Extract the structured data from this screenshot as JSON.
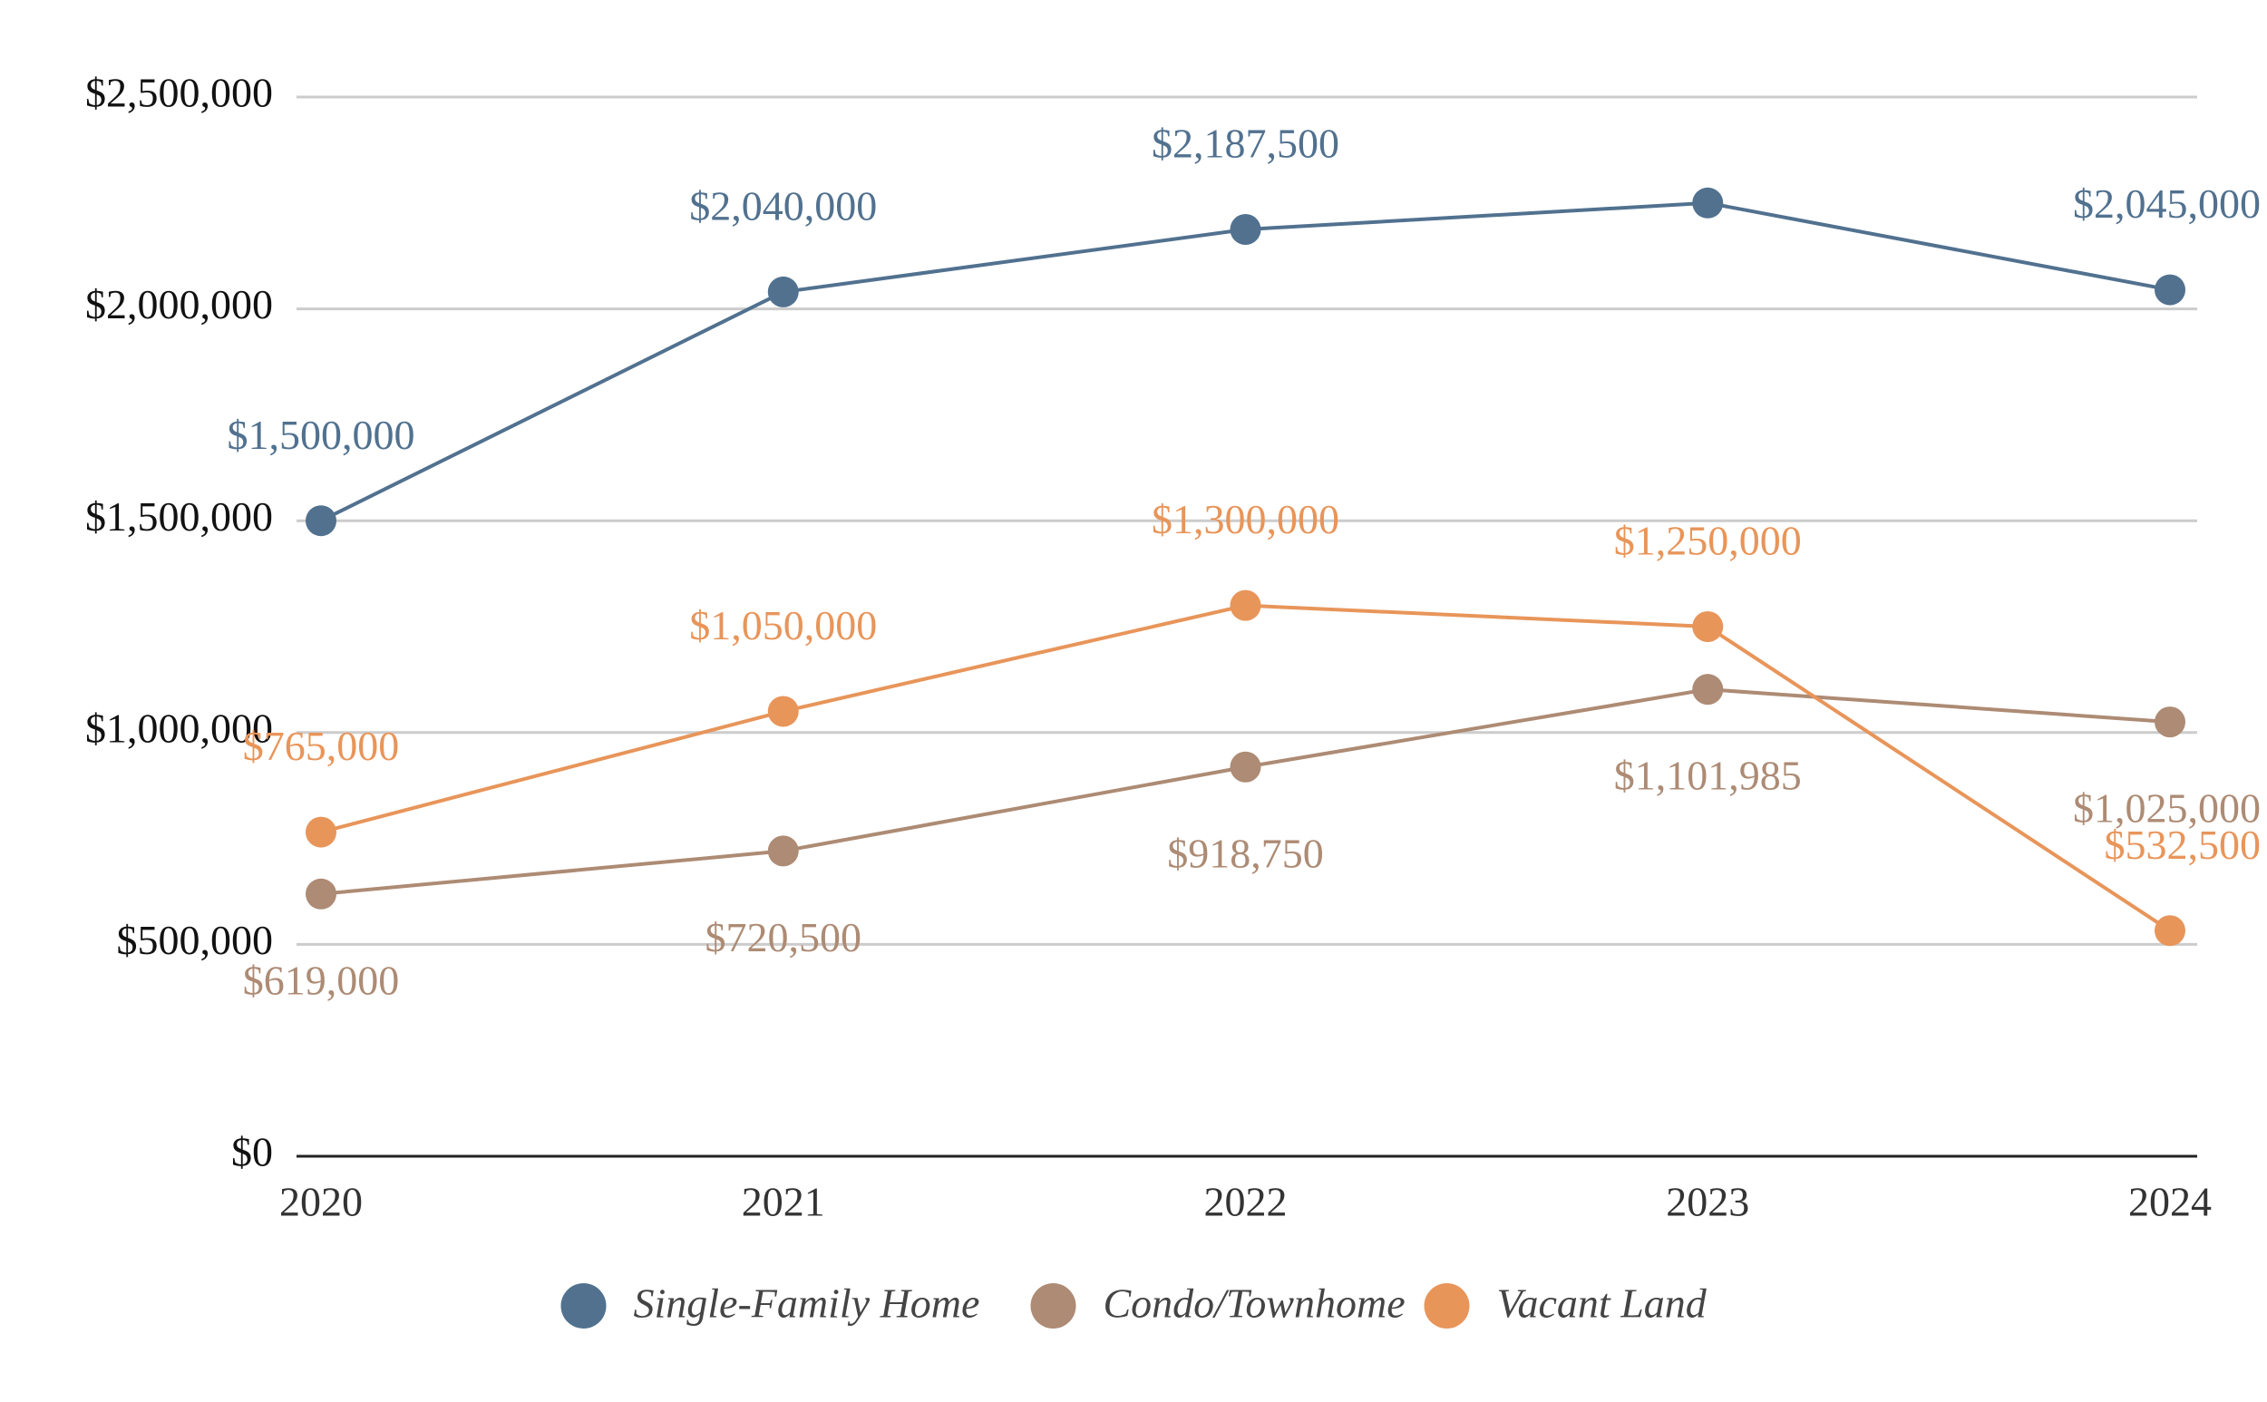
{
  "chart_data": {
    "type": "line",
    "x": [
      2020,
      2021,
      2022,
      2023,
      2024
    ],
    "xlim": [
      2020,
      2024
    ],
    "xticks": [
      2020,
      2021,
      2022,
      2023,
      2024
    ],
    "ylim": [
      0,
      2500000
    ],
    "yticks": [
      {
        "value": 0,
        "label": "$0"
      },
      {
        "value": 500000,
        "label": "$500,000"
      },
      {
        "value": 1000000,
        "label": "$1,000,000"
      },
      {
        "value": 1500000,
        "label": "$1,500,000"
      },
      {
        "value": 2000000,
        "label": "$2,000,000"
      },
      {
        "value": 2500000,
        "label": "$2,500,000"
      }
    ],
    "grid": true,
    "legend": "bottom",
    "series": [
      {
        "name": "Single-Family Home",
        "color": "#51718f",
        "values": [
          1500000,
          2040000,
          2187500,
          2250000,
          2045000
        ],
        "value_labels": [
          "$1,500,000",
          "$2,040,000",
          "$2,187,500",
          null,
          "$2,045,000"
        ]
      },
      {
        "name": "Condo/Townhome",
        "color": "#ad8b74",
        "values": [
          619000,
          720500,
          918750,
          1101985,
          1025000
        ],
        "value_labels": [
          "$619,000",
          "$720,500",
          "$918,750",
          "$1,101,985",
          "$1,025,000"
        ]
      },
      {
        "name": "Vacant Land",
        "color": "#e8955a",
        "values": [
          765000,
          1050000,
          1300000,
          1250000,
          532500
        ],
        "value_labels": [
          "$765,000",
          "$1,050,000",
          "$1,300,000",
          "$1,250,000",
          "$532,500"
        ]
      }
    ]
  }
}
